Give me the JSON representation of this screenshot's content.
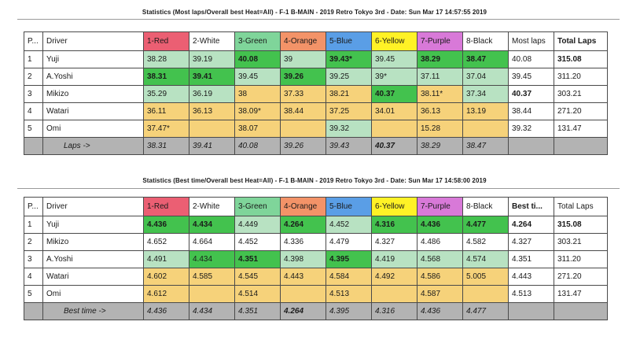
{
  "colors": {
    "header_red": "#eb5f73",
    "header_green": "#7fd59a",
    "header_orange": "#f39368",
    "header_blue": "#5a9ee6",
    "header_yellow": "#fff226",
    "header_purple": "#d879d8",
    "cell_light_green": "#b8e2c2",
    "cell_bright_green": "#43c24e",
    "cell_yellow": "#f6d27a",
    "footer_gray": "#b3b3b3"
  },
  "table1": {
    "title": "Statistics (Most laps/Overall best Heat=All) - F-1 B-MAIN - 2019 Retro Tokyo 3rd - Date: Sun Mar 17 14:57:55 2019",
    "headers": [
      "P...",
      "Driver",
      "1-Red",
      "2-White",
      "3-Green",
      "4-Orange",
      "5-Blue",
      "6-Yellow",
      "7-Purple",
      "8-Black",
      "Most laps",
      "Total Laps"
    ],
    "rows": [
      [
        "1",
        "Yuji",
        "38.28",
        "39.19",
        "40.08",
        "39",
        "39.43*",
        "39.45",
        "38.29",
        "38.47",
        "40.08",
        "315.08"
      ],
      [
        "2",
        "A.Yoshi",
        "38.31",
        "39.41",
        "39.45",
        "39.26",
        "39.25",
        "39*",
        "37.11",
        "37.04",
        "39.45",
        "311.20"
      ],
      [
        "3",
        "Mikizo",
        "35.29",
        "36.19",
        "38",
        "37.33",
        "38.21",
        "40.37",
        "38.11*",
        "37.34",
        "40.37",
        "303.21"
      ],
      [
        "4",
        "Watari",
        "36.11",
        "36.13",
        "38.09*",
        "38.44",
        "37.25",
        "34.01",
        "36.13",
        "13.19",
        "38.44",
        "271.20"
      ],
      [
        "5",
        "Omi",
        "37.47*",
        "",
        "38.07",
        "",
        "39.32",
        "",
        "15.28",
        "",
        "39.32",
        "131.47"
      ]
    ],
    "footer": [
      "",
      "Laps ->",
      "38.31",
      "39.41",
      "40.08",
      "39.26",
      "39.43",
      "40.37",
      "38.29",
      "38.47",
      "",
      ""
    ]
  },
  "table2": {
    "title": "Statistics (Best time/Overall best Heat=All) - F-1 B-MAIN - 2019 Retro Tokyo 3rd - Date: Sun Mar 17 14:58:00 2019",
    "headers": [
      "P...",
      "Driver",
      "1-Red",
      "2-White",
      "3-Green",
      "4-Orange",
      "5-Blue",
      "6-Yellow",
      "7-Purple",
      "8-Black",
      "Best ti...",
      "Total Laps"
    ],
    "rows": [
      [
        "1",
        "Yuji",
        "4.436",
        "4.434",
        "4.449",
        "4.264",
        "4.452",
        "4.316",
        "4.436",
        "4.477",
        "4.264",
        "315.08"
      ],
      [
        "2",
        "Mikizo",
        "4.652",
        "4.664",
        "4.452",
        "4.336",
        "4.479",
        "4.327",
        "4.486",
        "4.582",
        "4.327",
        "303.21"
      ],
      [
        "3",
        "A.Yoshi",
        "4.491",
        "4.434",
        "4.351",
        "4.398",
        "4.395",
        "4.419",
        "4.568",
        "4.574",
        "4.351",
        "311.20"
      ],
      [
        "4",
        "Watari",
        "4.602",
        "4.585",
        "4.545",
        "4.443",
        "4.584",
        "4.492",
        "4.586",
        "5.005",
        "4.443",
        "271.20"
      ],
      [
        "5",
        "Omi",
        "4.612",
        "",
        "4.514",
        "",
        "4.513",
        "",
        "4.587",
        "",
        "4.513",
        "131.47"
      ]
    ],
    "footer": [
      "",
      "Best time ->",
      "4.436",
      "4.434",
      "4.351",
      "4.264",
      "4.395",
      "4.316",
      "4.436",
      "4.477",
      "",
      ""
    ]
  }
}
